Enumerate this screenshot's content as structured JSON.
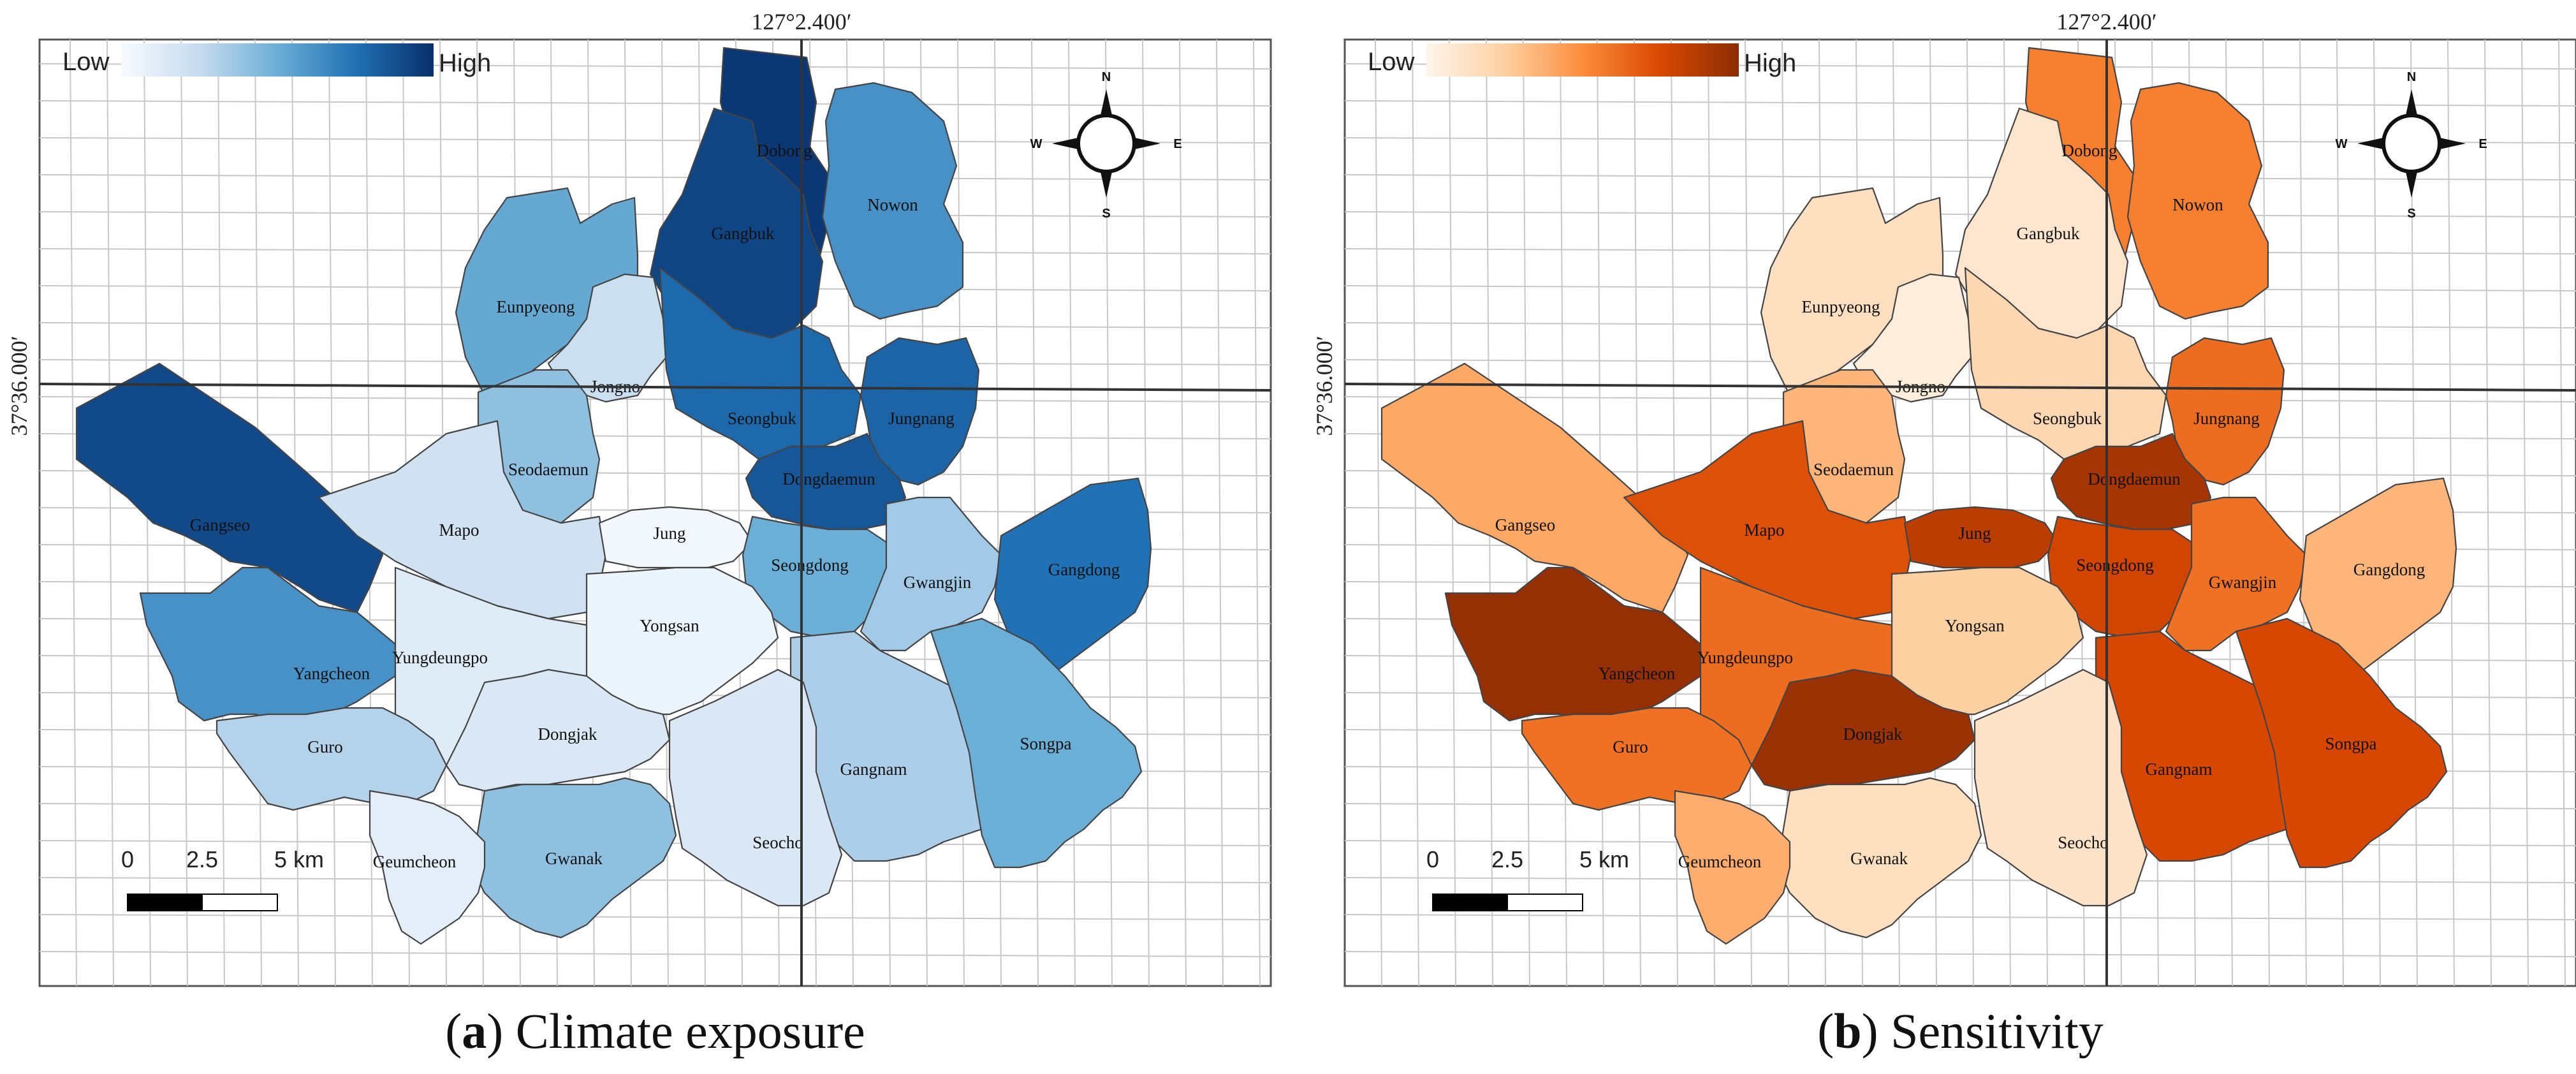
{
  "figure": {
    "panels": [
      {
        "id": "a",
        "caption_letter": "a",
        "caption_text": " Climate exposure",
        "paren_open": "(",
        "paren_close": ")",
        "legend": {
          "low": "Low",
          "high": "High"
        },
        "ramp": [
          "#f7fbff",
          "#c6dbef",
          "#6baed6",
          "#2171b5",
          "#08306b"
        ],
        "longitude_label": "127°2.400′",
        "latitude_label": "37°36.000′",
        "scale": {
          "ticks": [
            "0",
            "2.5",
            "5 km"
          ]
        },
        "compass": {
          "n": "N",
          "s": "S",
          "e": "E",
          "w": "W"
        },
        "districts": [
          {
            "name": "Dobong",
            "value": 0.97
          },
          {
            "name": "Gangbuk",
            "value": 0.92
          },
          {
            "name": "Nowon",
            "value": 0.62
          },
          {
            "name": "Eunpyeong",
            "value": 0.52
          },
          {
            "name": "Jongno",
            "value": 0.22
          },
          {
            "name": "Seongbuk",
            "value": 0.78
          },
          {
            "name": "Jungnang",
            "value": 0.8
          },
          {
            "name": "Gangseo",
            "value": 0.9
          },
          {
            "name": "Seodaemun",
            "value": 0.4
          },
          {
            "name": "Dongdaemun",
            "value": 0.85
          },
          {
            "name": "Mapo",
            "value": 0.2
          },
          {
            "name": "Jung",
            "value": 0.02
          },
          {
            "name": "Seongdong",
            "value": 0.5
          },
          {
            "name": "Gwangjin",
            "value": 0.35
          },
          {
            "name": "Gangdong",
            "value": 0.75
          },
          {
            "name": "Yangcheon",
            "value": 0.62
          },
          {
            "name": "Yungdeungpo",
            "value": 0.12
          },
          {
            "name": "Yongsan",
            "value": 0.05
          },
          {
            "name": "Dongjak",
            "value": 0.15
          },
          {
            "name": "Guro",
            "value": 0.3
          },
          {
            "name": "Gangnam",
            "value": 0.32
          },
          {
            "name": "Songpa",
            "value": 0.5
          },
          {
            "name": "Gwanak",
            "value": 0.4
          },
          {
            "name": "Seocho",
            "value": 0.15
          },
          {
            "name": "Geumcheon",
            "value": 0.1
          }
        ]
      },
      {
        "id": "b",
        "caption_letter": "b",
        "caption_text": " Sensitivity",
        "paren_open": "(",
        "paren_close": ")",
        "legend": {
          "low": "Low",
          "high": "High"
        },
        "ramp": [
          "#fff5eb",
          "#fdd0a2",
          "#fd8d3c",
          "#d94801",
          "#8c2d04"
        ],
        "longitude_label": "127°2.400′",
        "latitude_label": "37°36.000′",
        "scale": {
          "ticks": [
            "0",
            "2.5",
            "5 km"
          ]
        },
        "compass": {
          "n": "N",
          "s": "S",
          "e": "E",
          "w": "W"
        },
        "districts": [
          {
            "name": "Dobong",
            "value": 0.55
          },
          {
            "name": "Gangbuk",
            "value": 0.1
          },
          {
            "name": "Nowon",
            "value": 0.55
          },
          {
            "name": "Eunpyeong",
            "value": 0.15
          },
          {
            "name": "Jongno",
            "value": 0.05
          },
          {
            "name": "Seongbuk",
            "value": 0.2
          },
          {
            "name": "Jungnang",
            "value": 0.62
          },
          {
            "name": "Gangseo",
            "value": 0.4
          },
          {
            "name": "Seodaemun",
            "value": 0.35
          },
          {
            "name": "Dongdaemun",
            "value": 0.92
          },
          {
            "name": "Mapo",
            "value": 0.72
          },
          {
            "name": "Jung",
            "value": 0.85
          },
          {
            "name": "Seongdong",
            "value": 0.78
          },
          {
            "name": "Gwangjin",
            "value": 0.6
          },
          {
            "name": "Gangdong",
            "value": 0.35
          },
          {
            "name": "Yangcheon",
            "value": 0.97
          },
          {
            "name": "Yungdeungpo",
            "value": 0.62
          },
          {
            "name": "Yongsan",
            "value": 0.25
          },
          {
            "name": "Dongjak",
            "value": 0.95
          },
          {
            "name": "Guro",
            "value": 0.6
          },
          {
            "name": "Gangnam",
            "value": 0.76
          },
          {
            "name": "Songpa",
            "value": 0.76
          },
          {
            "name": "Gwanak",
            "value": 0.15
          },
          {
            "name": "Seocho",
            "value": 0.12
          },
          {
            "name": "Geumcheon",
            "value": 0.38
          }
        ]
      }
    ]
  }
}
